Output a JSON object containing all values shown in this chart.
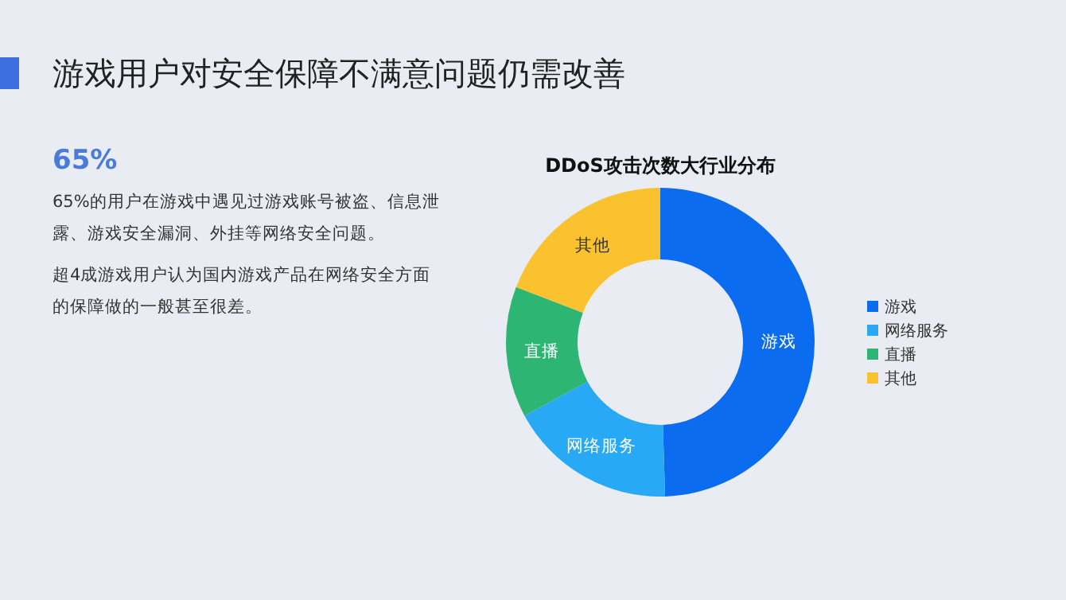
{
  "chart_data": {
    "type": "donut",
    "title": "DDoS攻击次数大行业分布",
    "categories": [
      "游戏",
      "网络服务",
      "直播",
      "其他"
    ],
    "values": [
      49.5,
      17.6,
      13.7,
      19.2
    ],
    "colors": [
      "#0b6cf0",
      "#27a9f6",
      "#2db673",
      "#f9c22e"
    ],
    "legend": "right",
    "annotations": [
      "游戏用户对安全保障不满意问题仍需改善",
      "65%",
      "65%的用户在游戏中遇见过游戏账号被盗、信息泄露、游戏安全漏洞、外挂等网络安全问题。",
      "超4成游戏用户认为国内游戏产品在网络安全方面的保障做的一般甚至很差。"
    ]
  }
}
